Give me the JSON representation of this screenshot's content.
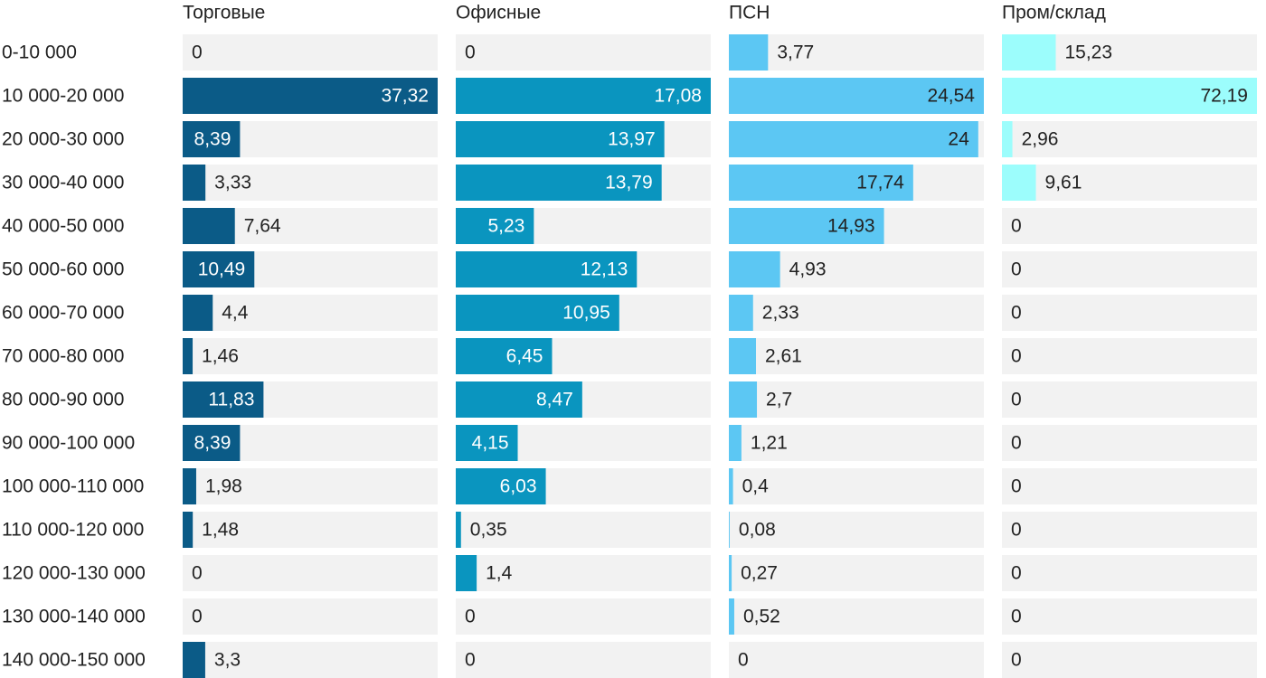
{
  "chart_data": {
    "type": "bar",
    "categories": [
      "0-10 000",
      "10 000-20 000",
      "20 000-30 000",
      "30 000-40 000",
      "40 000-50 000",
      "50 000-60 000",
      "60 000-70 000",
      "70 000-80 000",
      "80 000-90 000",
      "90 000-100 000",
      "100 000-110 000",
      "110 000-120 000",
      "120 000-130 000",
      "130 000-140 000",
      "140 000-150 000"
    ],
    "series": [
      {
        "name": "Торговые",
        "color": "#0b5b87",
        "values": [
          0,
          37.32,
          8.39,
          3.33,
          7.64,
          10.49,
          4.4,
          1.46,
          11.83,
          8.39,
          1.98,
          1.48,
          0,
          0,
          3.3
        ],
        "value_labels": [
          "0",
          "37,32",
          "8,39",
          "3,33",
          "7,64",
          "10,49",
          "4,4",
          "1,46",
          "11,83",
          "8,39",
          "1,98",
          "1,48",
          "0",
          "0",
          "3,3"
        ]
      },
      {
        "name": "Офисные",
        "color": "#0a95bf",
        "values": [
          0,
          17.08,
          13.97,
          13.79,
          5.23,
          12.13,
          10.95,
          6.45,
          8.47,
          4.15,
          6.03,
          0.35,
          1.4,
          0,
          0
        ],
        "value_labels": [
          "0",
          "17,08",
          "13,97",
          "13,79",
          "5,23",
          "12,13",
          "10,95",
          "6,45",
          "8,47",
          "4,15",
          "6,03",
          "0,35",
          "1,4",
          "0",
          "0"
        ]
      },
      {
        "name": "ПСН",
        "color": "#5cc7f3",
        "values": [
          3.77,
          24.54,
          24,
          17.74,
          14.93,
          4.93,
          2.33,
          2.61,
          2.7,
          1.21,
          0.4,
          0.08,
          0.27,
          0.52,
          0
        ],
        "value_labels": [
          "3,77",
          "24,54",
          "24",
          "17,74",
          "14,93",
          "4,93",
          "2,33",
          "2,61",
          "2,7",
          "1,21",
          "0,4",
          "0,08",
          "0,27",
          "0,52",
          "0"
        ]
      },
      {
        "name": "Пром/склад",
        "color": "#9cfdfc",
        "values": [
          15.23,
          72.19,
          2.96,
          9.61,
          0,
          0,
          0,
          0,
          0,
          0,
          0,
          0,
          0,
          0,
          0
        ],
        "value_labels": [
          "15,23",
          "72,19",
          "2,96",
          "9,61",
          "0",
          "0",
          "0",
          "0",
          "0",
          "0",
          "0",
          "0",
          "0",
          "0",
          "0"
        ]
      }
    ]
  }
}
